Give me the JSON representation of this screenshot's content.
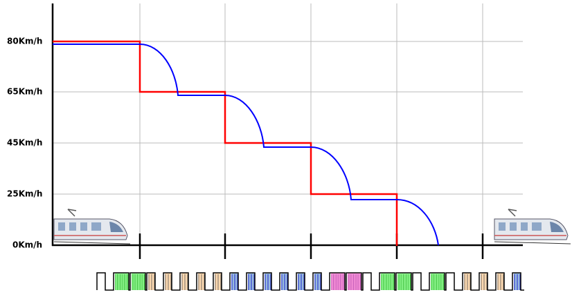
{
  "axis_labels": [
    "80Km/h",
    "65Km/h",
    "45Km/h",
    "25Km/h",
    "0Km/h"
  ]
}
